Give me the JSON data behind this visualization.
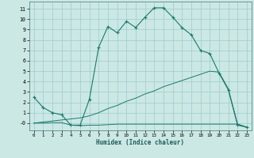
{
  "background_color": "#cce8e4",
  "grid_color": "#99cccc",
  "line_color": "#1a7a6a",
  "xlabel": "Humidex (Indice chaleur)",
  "xlim": [
    -0.5,
    23.5
  ],
  "ylim": [
    -0.7,
    11.7
  ],
  "xticks": [
    0,
    1,
    2,
    3,
    4,
    5,
    6,
    7,
    8,
    9,
    10,
    11,
    12,
    13,
    14,
    15,
    16,
    17,
    18,
    19,
    20,
    21,
    22,
    23
  ],
  "yticks": [
    0,
    1,
    2,
    3,
    4,
    5,
    6,
    7,
    8,
    9,
    10,
    11
  ],
  "yticklabels": [
    "-0",
    "1",
    "2",
    "3",
    "4",
    "5",
    "6",
    "7",
    "8",
    "9",
    "10",
    "11"
  ],
  "curve1_x": [
    0,
    1,
    2,
    3,
    4,
    5,
    6,
    7,
    8,
    9,
    10,
    11,
    12,
    13,
    14,
    15,
    16,
    17,
    18,
    19,
    20,
    21,
    22,
    23
  ],
  "curve1_y": [
    2.5,
    1.5,
    1.0,
    0.8,
    -0.2,
    -0.2,
    2.3,
    7.3,
    9.3,
    8.7,
    9.8,
    9.2,
    10.2,
    11.1,
    11.1,
    10.2,
    9.2,
    8.5,
    7.0,
    6.7,
    4.8,
    3.2,
    -0.2,
    -0.4
  ],
  "curve2_x": [
    0,
    1,
    2,
    3,
    4,
    5,
    6,
    7,
    8,
    9,
    10,
    11,
    12,
    13,
    14,
    15,
    16,
    17,
    18,
    19,
    20,
    21,
    22,
    23
  ],
  "curve2_y": [
    0.0,
    0.0,
    0.05,
    0.05,
    -0.2,
    -0.25,
    -0.2,
    -0.2,
    -0.15,
    -0.1,
    -0.1,
    -0.1,
    -0.1,
    -0.1,
    -0.1,
    -0.1,
    -0.1,
    -0.1,
    -0.1,
    -0.1,
    -0.1,
    -0.1,
    -0.1,
    -0.4
  ],
  "curve3_x": [
    0,
    1,
    2,
    3,
    4,
    5,
    6,
    7,
    8,
    9,
    10,
    11,
    12,
    13,
    14,
    15,
    16,
    17,
    18,
    19,
    20,
    21,
    22,
    23
  ],
  "curve3_y": [
    0.0,
    0.1,
    0.2,
    0.3,
    0.4,
    0.5,
    0.7,
    1.0,
    1.4,
    1.7,
    2.1,
    2.4,
    2.8,
    3.1,
    3.5,
    3.8,
    4.1,
    4.4,
    4.7,
    5.0,
    4.9,
    3.3,
    -0.1,
    -0.4
  ]
}
